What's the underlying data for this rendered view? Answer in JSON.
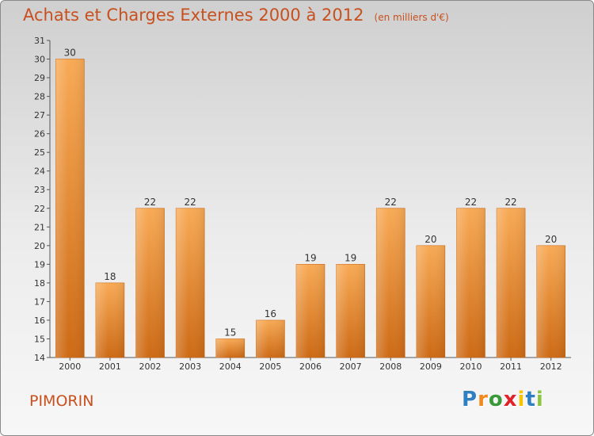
{
  "title": "Achats et Charges Externes 2000 à 2012",
  "unit_note": "(en milliers d'€)",
  "commune": "PIMORIN",
  "logo": {
    "letters": [
      "P",
      "r",
      "o",
      "x",
      "i",
      "t",
      "i"
    ],
    "colors": [
      "#2f7fc1",
      "#f08a1c",
      "#3a9a3a",
      "#e2222a",
      "#f6c500",
      "#2f7fc1",
      "#8cc63f"
    ]
  },
  "colors": {
    "bar": "#f0902c",
    "bar_light": "#f8aa55",
    "bar_dark": "#cd6a15",
    "text": "#c8501e"
  },
  "chart_data": {
    "type": "bar",
    "title": "Achats et Charges Externes 2000 à 2012",
    "subtitle": "(en milliers d'€)",
    "categories": [
      "2000",
      "2001",
      "2002",
      "2003",
      "2004",
      "2005",
      "2006",
      "2007",
      "2008",
      "2009",
      "2010",
      "2011",
      "2012"
    ],
    "values": [
      30,
      18,
      22,
      22,
      15,
      16,
      19,
      19,
      22,
      20,
      22,
      22,
      20
    ],
    "ylim": [
      14,
      31
    ],
    "yticks": [
      14,
      15,
      16,
      17,
      18,
      19,
      20,
      21,
      22,
      23,
      24,
      25,
      26,
      27,
      28,
      29,
      30,
      31
    ],
    "grid": false,
    "legend": "none"
  }
}
